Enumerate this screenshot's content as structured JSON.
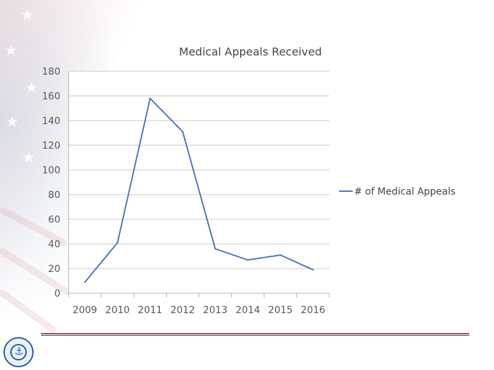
{
  "chart_data": {
    "type": "line",
    "title": "Medical Appeals Received",
    "categories": [
      "2009",
      "2010",
      "2011",
      "2012",
      "2013",
      "2014",
      "2015",
      "2016"
    ],
    "series": [
      {
        "name": "# of Medical Appeals",
        "values": [
          9,
          41,
          158,
          131,
          36,
          27,
          31,
          19
        ],
        "color": "#4f77b3"
      }
    ],
    "ylim": [
      0,
      180
    ],
    "yticks": [
      0,
      20,
      40,
      60,
      80,
      100,
      120,
      140,
      160,
      180
    ],
    "grid": true,
    "legend": "right"
  },
  "decor": {
    "background_icon": "flag-icon",
    "seal_icon": "coast-guard-seal-icon",
    "accent_red": "#b9473f",
    "accent_blue": "#1f4b8f"
  }
}
